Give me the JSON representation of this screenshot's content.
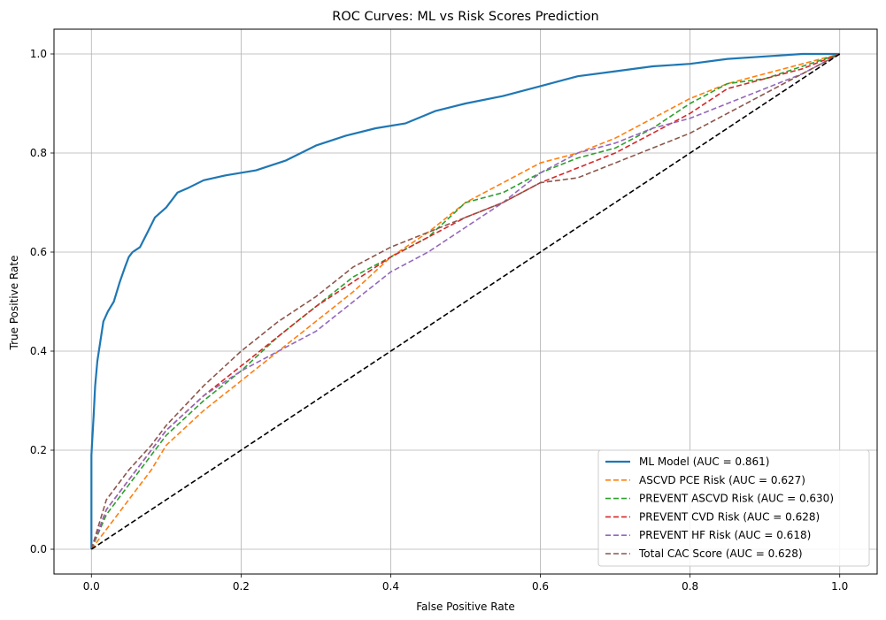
{
  "chart_data": {
    "type": "line",
    "title": "ROC Curves: ML vs Risk Scores Prediction",
    "xlabel": "False Positive Rate",
    "ylabel": "True Positive Rate",
    "xlim": [
      -0.05,
      1.05
    ],
    "ylim": [
      -0.05,
      1.05
    ],
    "xticks": [
      "0.0",
      "0.2",
      "0.4",
      "0.6",
      "0.8",
      "1.0"
    ],
    "yticks": [
      "0.0",
      "0.2",
      "0.4",
      "0.6",
      "0.8",
      "1.0"
    ],
    "grid": true,
    "legend_position": "bottom-right",
    "series": [
      {
        "name": "ML Model (AUC = 0.861)",
        "color": "#1f77b4",
        "style": "solid",
        "x": [
          0,
          0,
          0.003,
          0.005,
          0.008,
          0.012,
          0.016,
          0.022,
          0.03,
          0.038,
          0.045,
          0.05,
          0.055,
          0.065,
          0.075,
          0.085,
          0.1,
          0.115,
          0.13,
          0.15,
          0.18,
          0.22,
          0.26,
          0.3,
          0.34,
          0.38,
          0.42,
          0.46,
          0.5,
          0.55,
          0.6,
          0.65,
          0.7,
          0.75,
          0.8,
          0.85,
          0.9,
          0.95,
          1.0
        ],
        "y": [
          0,
          0.19,
          0.27,
          0.33,
          0.38,
          0.42,
          0.46,
          0.48,
          0.5,
          0.54,
          0.57,
          0.59,
          0.6,
          0.61,
          0.64,
          0.67,
          0.69,
          0.72,
          0.73,
          0.745,
          0.755,
          0.765,
          0.785,
          0.815,
          0.835,
          0.85,
          0.86,
          0.885,
          0.9,
          0.915,
          0.935,
          0.955,
          0.965,
          0.975,
          0.98,
          0.99,
          0.995,
          1.0,
          1.0
        ]
      },
      {
        "name": "ASCVD PCE Risk (AUC = 0.627)",
        "color": "#ff7f0e",
        "style": "dashed",
        "x": [
          0,
          0.02,
          0.05,
          0.08,
          0.1,
          0.15,
          0.2,
          0.25,
          0.3,
          0.35,
          0.4,
          0.45,
          0.5,
          0.55,
          0.6,
          0.65,
          0.7,
          0.75,
          0.8,
          0.85,
          0.9,
          0.95,
          1.0
        ],
        "y": [
          0,
          0.04,
          0.1,
          0.16,
          0.21,
          0.28,
          0.34,
          0.4,
          0.46,
          0.52,
          0.59,
          0.64,
          0.7,
          0.74,
          0.78,
          0.8,
          0.83,
          0.87,
          0.91,
          0.94,
          0.96,
          0.98,
          1.0
        ]
      },
      {
        "name": "PREVENT ASCVD Risk (AUC = 0.630)",
        "color": "#2ca02c",
        "style": "dashed",
        "x": [
          0,
          0.02,
          0.05,
          0.08,
          0.1,
          0.15,
          0.2,
          0.25,
          0.3,
          0.35,
          0.4,
          0.45,
          0.5,
          0.55,
          0.6,
          0.65,
          0.7,
          0.75,
          0.8,
          0.85,
          0.9,
          0.95,
          1.0
        ],
        "y": [
          0,
          0.07,
          0.13,
          0.19,
          0.23,
          0.3,
          0.36,
          0.43,
          0.49,
          0.55,
          0.59,
          0.63,
          0.7,
          0.72,
          0.76,
          0.79,
          0.81,
          0.85,
          0.9,
          0.94,
          0.95,
          0.975,
          1.0
        ]
      },
      {
        "name": "PREVENT CVD Risk (AUC = 0.628)",
        "color": "#d62728",
        "style": "dashed",
        "x": [
          0,
          0.02,
          0.05,
          0.08,
          0.1,
          0.15,
          0.2,
          0.25,
          0.3,
          0.35,
          0.4,
          0.45,
          0.5,
          0.55,
          0.6,
          0.65,
          0.7,
          0.75,
          0.8,
          0.85,
          0.9,
          0.95,
          1.0
        ],
        "y": [
          0,
          0.08,
          0.14,
          0.2,
          0.24,
          0.31,
          0.37,
          0.43,
          0.49,
          0.54,
          0.59,
          0.63,
          0.67,
          0.7,
          0.74,
          0.77,
          0.8,
          0.84,
          0.88,
          0.93,
          0.95,
          0.97,
          1.0
        ]
      },
      {
        "name": "PREVENT HF Risk (AUC = 0.618)",
        "color": "#9467bd",
        "style": "dashed",
        "x": [
          0,
          0.02,
          0.05,
          0.08,
          0.1,
          0.15,
          0.2,
          0.25,
          0.3,
          0.35,
          0.4,
          0.45,
          0.5,
          0.55,
          0.6,
          0.65,
          0.7,
          0.75,
          0.8,
          0.85,
          0.9,
          0.95,
          1.0
        ],
        "y": [
          0,
          0.08,
          0.14,
          0.2,
          0.24,
          0.31,
          0.36,
          0.4,
          0.44,
          0.5,
          0.56,
          0.6,
          0.65,
          0.7,
          0.76,
          0.8,
          0.82,
          0.85,
          0.87,
          0.9,
          0.93,
          0.96,
          1.0
        ]
      },
      {
        "name": "Total CAC Score (AUC = 0.628)",
        "color": "#8c564b",
        "style": "dashed",
        "x": [
          0,
          0.02,
          0.05,
          0.08,
          0.1,
          0.15,
          0.2,
          0.25,
          0.3,
          0.35,
          0.4,
          0.45,
          0.5,
          0.55,
          0.6,
          0.65,
          0.7,
          0.75,
          0.8,
          0.85,
          0.9,
          0.95,
          1.0
        ],
        "y": [
          0,
          0.1,
          0.16,
          0.21,
          0.25,
          0.33,
          0.4,
          0.46,
          0.51,
          0.57,
          0.61,
          0.64,
          0.67,
          0.7,
          0.74,
          0.75,
          0.78,
          0.81,
          0.84,
          0.88,
          0.92,
          0.96,
          1.0
        ]
      }
    ],
    "reference_line": {
      "color": "#000000",
      "style": "dashed",
      "x": [
        0,
        1
      ],
      "y": [
        0,
        1
      ]
    }
  }
}
